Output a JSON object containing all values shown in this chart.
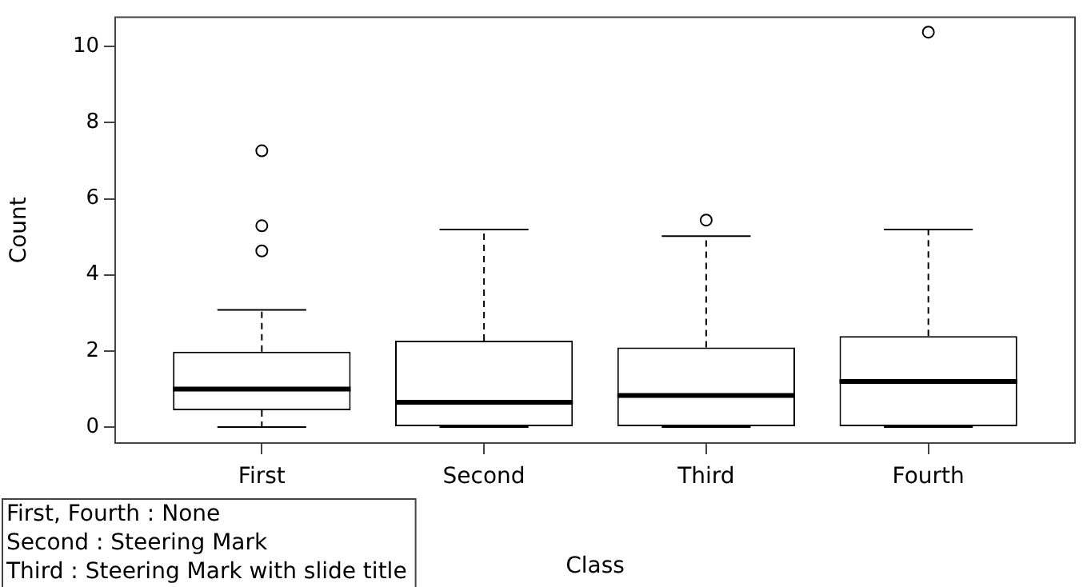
{
  "chart_data": {
    "type": "box",
    "xlabel": "Class",
    "ylabel": "Count",
    "categories": [
      "First",
      "Second",
      "Third",
      "Fourth"
    ],
    "boxes": [
      {
        "low": 0,
        "q1": 0.44,
        "median": 1.0,
        "q3": 1.98,
        "high": 3.08,
        "outliers": [
          4.63,
          5.29,
          7.26
        ]
      },
      {
        "low": 0,
        "q1": 0,
        "median": 0.65,
        "q3": 2.27,
        "high": 5.19
      },
      {
        "low": 0,
        "q1": 0,
        "median": 0.83,
        "q3": 2.09,
        "high": 5.02,
        "outliers": [
          5.44
        ]
      },
      {
        "low": 0,
        "q1": 0,
        "median": 1.2,
        "q3": 2.39,
        "high": 5.19,
        "outliers": [
          10.38
        ]
      }
    ],
    "ylim": [
      -0.42,
      10.77
    ],
    "yticks": [
      0,
      2,
      4,
      6,
      8,
      10
    ],
    "annotations": [
      "First, Fourth : None",
      "Second : Steering Mark",
      "Third : Steering Mark with slide title"
    ]
  }
}
